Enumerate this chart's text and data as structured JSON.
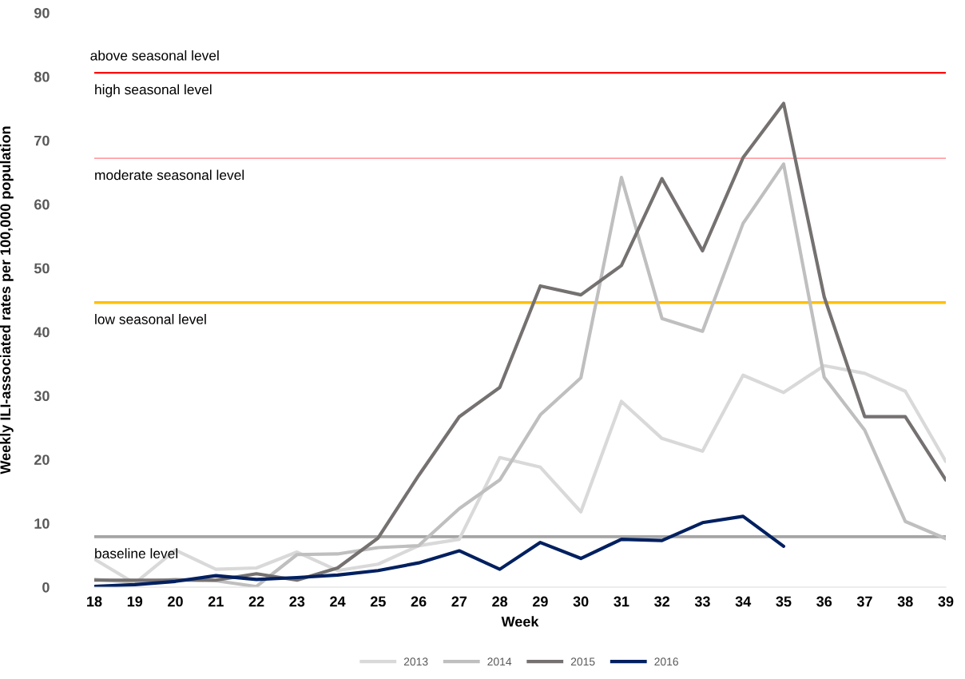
{
  "chart_data": {
    "type": "line",
    "xlabel": "Week",
    "ylabel": "Weekly ILI-associated rates per 100,000 population",
    "categories": [
      "18",
      "19",
      "20",
      "21",
      "22",
      "23",
      "24",
      "25",
      "26",
      "27",
      "28",
      "29",
      "30",
      "31",
      "32",
      "33",
      "34",
      "35",
      "36",
      "37",
      "38",
      "39"
    ],
    "series": [
      {
        "name": "2013",
        "color": "#d9d9d9",
        "values": [
          4.4,
          0.6,
          5.8,
          2.8,
          3.0,
          5.5,
          2.6,
          3.6,
          6.5,
          7.5,
          20.3,
          18.8,
          11.8,
          29.1,
          23.3,
          21.3,
          33.2,
          30.5,
          34.7,
          33.5,
          30.7,
          19.7
        ]
      },
      {
        "name": "2014",
        "color": "#bfbfbf",
        "values": [
          1.2,
          0.8,
          1.2,
          1.0,
          0.1,
          5.1,
          5.2,
          6.2,
          6.5,
          12.3,
          16.8,
          27.0,
          32.8,
          64.2,
          42.1,
          40.1,
          57.0,
          66.3,
          32.9,
          24.6,
          10.3,
          7.6
        ]
      },
      {
        "name": "2015",
        "color": "#767171",
        "values": [
          1.1,
          1.1,
          1.1,
          1.1,
          2.1,
          1.1,
          3.0,
          7.7,
          17.5,
          26.7,
          31.3,
          47.2,
          45.8,
          50.4,
          64.0,
          52.7,
          67.3,
          75.8,
          45.5,
          26.7,
          26.7,
          16.8
        ]
      },
      {
        "name": "2016",
        "color": "#002060",
        "values": [
          0.1,
          0.4,
          0.9,
          1.8,
          1.2,
          1.5,
          1.9,
          2.6,
          3.8,
          5.7,
          2.8,
          7.0,
          4.5,
          7.5,
          7.3,
          10.1,
          11.1,
          6.4,
          null,
          null,
          null,
          null
        ]
      }
    ],
    "ylim": [
      0,
      90
    ],
    "yticks": [
      0,
      10,
      20,
      30,
      40,
      50,
      60,
      70,
      80,
      90
    ],
    "ref_lines": [
      {
        "axis": "y",
        "value": 80.6,
        "label": "high seasonal level",
        "color": "#ff0000"
      },
      {
        "axis": "y",
        "value": 67.2,
        "label": "moderate seasonal level",
        "color": "#ff7c80"
      },
      {
        "axis": "y",
        "value": 44.6,
        "label": "low seasonal level",
        "color": "#ffc000"
      },
      {
        "axis": "y",
        "value": 7.9,
        "label": "baseline level",
        "color": "#a5a5a5"
      }
    ],
    "annotations": [
      "above seasonal level"
    ],
    "legend": "bottom",
    "grid": false,
    "marker": "none",
    "line_style": "solid"
  }
}
